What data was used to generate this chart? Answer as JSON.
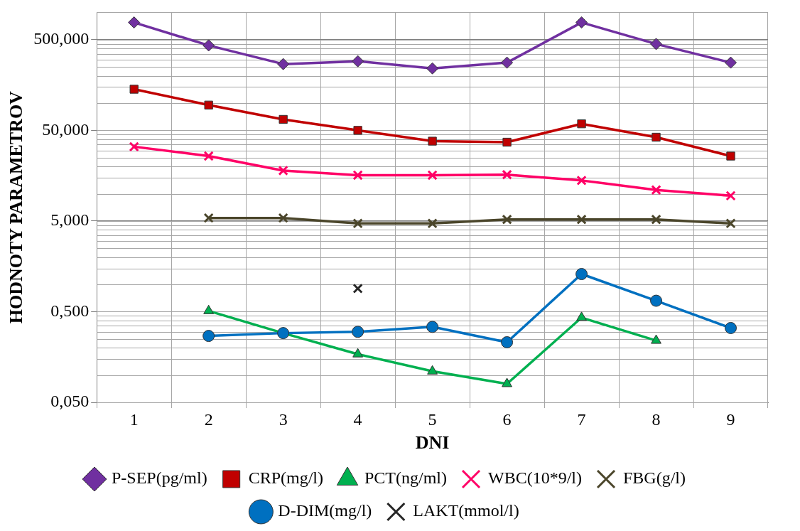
{
  "chart_data": {
    "type": "line",
    "xlabel": "DNI",
    "ylabel": "HODNOTY PARAMETROV",
    "categories": [
      "1",
      "2",
      "3",
      "4",
      "5",
      "6",
      "7",
      "8",
      "9"
    ],
    "log": "y",
    "ylim": [
      0.05,
      1000
    ],
    "yticks": [
      {
        "value": 0.05,
        "label": "0,050"
      },
      {
        "value": 0.5,
        "label": "0,500"
      },
      {
        "value": 5,
        "label": "5,000"
      },
      {
        "value": 50,
        "label": "50,000"
      },
      {
        "value": 500,
        "label": "500,000"
      }
    ],
    "grid": true,
    "legend": "bottom",
    "series": [
      {
        "name": "P-SEP(pg/ml)",
        "color": "#7030a0",
        "marker": "diamond",
        "values": [
          774,
          432,
          269,
          289,
          241,
          279,
          774,
          448,
          279
        ]
      },
      {
        "name": "CRP(mg/l)",
        "color": "#c00000",
        "marker": "square",
        "values": [
          142,
          95,
          66,
          50,
          38,
          37,
          59,
          42,
          26
        ]
      },
      {
        "name": "PCT(ng/ml)",
        "color": "#00b050",
        "marker": "triangle",
        "values": [
          null,
          0.51,
          0.29,
          0.17,
          0.11,
          0.08,
          0.43,
          0.24,
          null
        ]
      },
      {
        "name": "WBC(10*9/l)",
        "color": "#ff0066",
        "marker": "cross",
        "values": [
          33,
          26,
          18,
          16,
          16,
          16.2,
          14,
          11,
          9.5
        ]
      },
      {
        "name": "FBG(g/l)",
        "color": "#4a452a",
        "marker": "cross",
        "values": [
          null,
          5.4,
          5.4,
          4.7,
          4.7,
          5.2,
          5.2,
          5.2,
          4.7
        ]
      },
      {
        "name": "D-DIM(mg/l)",
        "color": "#0070c0",
        "marker": "circle",
        "values": [
          null,
          0.27,
          0.29,
          0.3,
          0.34,
          0.23,
          1.3,
          0.66,
          0.33
        ]
      },
      {
        "name": "LAKT(mmol/l)",
        "color": "#262626",
        "marker": "cross",
        "values": [
          null,
          null,
          null,
          0.9,
          null,
          null,
          null,
          null,
          null
        ]
      }
    ]
  }
}
